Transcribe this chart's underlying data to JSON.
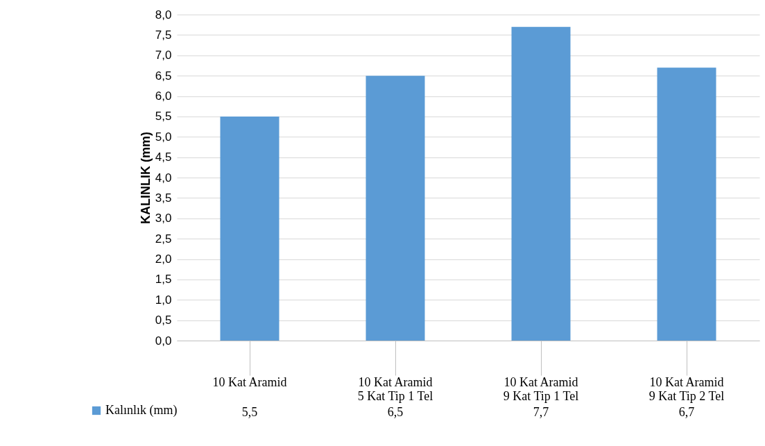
{
  "chart_data": {
    "type": "bar",
    "ylabel": "KALINLIK (mm)",
    "categories": [
      "10 Kat Aramid",
      "10 Kat Aramid\n5 Kat Tip 1 Tel",
      "10 Kat Aramid\n9 Kat Tip 1 Tel",
      "10 Kat Aramid\n9 Kat Tip 2 Tel"
    ],
    "series": [
      {
        "name": "Kalınlık (mm)",
        "color": "#5b9bd5",
        "values": [
          5.5,
          6.5,
          7.7,
          6.7
        ],
        "value_labels": [
          "5,5",
          "6,5",
          "7,7",
          "6,7"
        ]
      }
    ],
    "ylim": [
      0,
      8
    ],
    "yticks": [
      {
        "value": 0,
        "label": "0,0"
      },
      {
        "value": 0.5,
        "label": "0,5"
      },
      {
        "value": 1,
        "label": "1,0"
      },
      {
        "value": 1.5,
        "label": "1,5"
      },
      {
        "value": 2,
        "label": "2,0"
      },
      {
        "value": 2.5,
        "label": "2,5"
      },
      {
        "value": 3,
        "label": "3,0"
      },
      {
        "value": 3.5,
        "label": "3,5"
      },
      {
        "value": 4,
        "label": "4,0"
      },
      {
        "value": 4.5,
        "label": "4,5"
      },
      {
        "value": 5,
        "label": "5,0"
      },
      {
        "value": 5.5,
        "label": "5,5"
      },
      {
        "value": 6,
        "label": "6,0"
      },
      {
        "value": 6.5,
        "label": "6,5"
      },
      {
        "value": 7,
        "label": "7,0"
      },
      {
        "value": 7.5,
        "label": "7,5"
      },
      {
        "value": 8,
        "label": "8,0"
      }
    ],
    "grid": "y",
    "legend": "bottom left"
  }
}
